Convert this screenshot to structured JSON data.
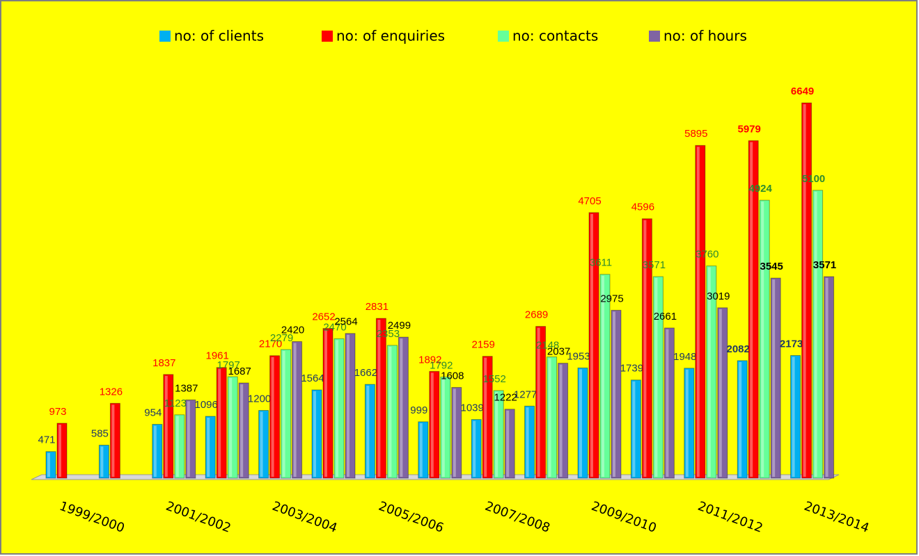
{
  "chart_data": {
    "type": "bar",
    "categories": [
      "1999/2000",
      null,
      "2001/2002",
      null,
      "2003/2004",
      null,
      "2005/2006",
      null,
      "2007/2008",
      null,
      "2009/2010",
      null,
      "2011/2012",
      null,
      "2013/2014"
    ],
    "series": [
      {
        "name": "no: of clients",
        "color": "#00b0f0",
        "label_color": "#1f3864",
        "values": [
          471,
          585,
          954,
          1096,
          1200,
          1564,
          1662,
          999,
          1039,
          1277,
          1953,
          1739,
          1948,
          2082,
          2173
        ]
      },
      {
        "name": "no: of enquiries",
        "color": "#ff0000",
        "label_color": "#ff0000",
        "values": [
          973,
          1326,
          1837,
          1961,
          2170,
          2652,
          2831,
          1892,
          2159,
          2689,
          4705,
          4596,
          5895,
          5979,
          6649
        ]
      },
      {
        "name": "no: contacts",
        "color": "#66ff99",
        "label_color": "#2e8b2e",
        "values": [
          null,
          null,
          1123,
          1797,
          2279,
          2470,
          2353,
          1792,
          1552,
          2148,
          3611,
          3571,
          3760,
          4924,
          5100
        ]
      },
      {
        "name": "no: of hours",
        "color": "#8064a2",
        "label_color": "#000000",
        "values": [
          null,
          null,
          1387,
          1687,
          2420,
          2564,
          2499,
          1608,
          1222,
          2037,
          2975,
          2661,
          3019,
          3545,
          3571
        ]
      }
    ],
    "legend": "top",
    "grid": false
  }
}
